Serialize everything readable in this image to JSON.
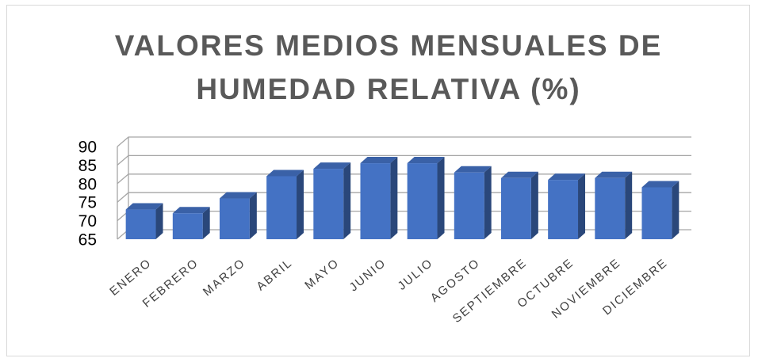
{
  "chart_data": {
    "type": "bar3d",
    "title": "VALORES MEDIOS MENSUALES DE HUMEDAD RELATIVA (%)",
    "categories": [
      "ENERO",
      "FEBRERO",
      "MARZO",
      "ABRIL",
      "MAYO",
      "JUNIO",
      "JULIO",
      "AGOSTO",
      "SEPTIEMBRE",
      "OCTUBRE",
      "NOVIEMBRE",
      "DICIEMBRE"
    ],
    "values": [
      73,
      72,
      76,
      82,
      84,
      85.5,
      85.5,
      83,
      81.5,
      81,
      81.5,
      79
    ],
    "color": "#4472c4",
    "ylim": [
      65,
      90
    ],
    "yticks": [
      65,
      70,
      75,
      80,
      85,
      90
    ],
    "grid": true
  }
}
